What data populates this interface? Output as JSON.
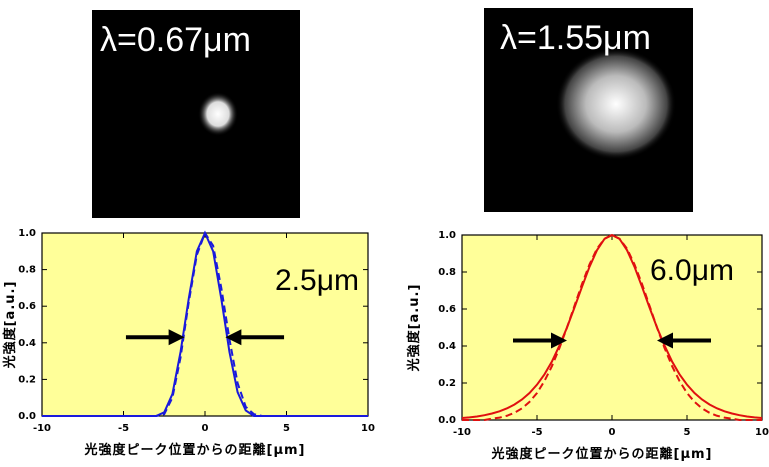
{
  "chart_data": [
    {
      "type": "line",
      "image_label": "λ=0.67μm",
      "annotation": "2.5μm",
      "xlabel": "光強度ピーク位置からの距離[μm]",
      "ylabel": "光強度[a.u.]",
      "xlim": [
        -10,
        10
      ],
      "xticks": [
        -10,
        -5,
        0,
        5,
        10
      ],
      "ylim": [
        0,
        1
      ],
      "yticks": [
        {
          "value": 0,
          "label": "0.0"
        },
        0.2,
        0.4,
        0.6,
        0.8,
        {
          "value": 1,
          "label": "1.0"
        }
      ],
      "x": [
        -10,
        -9.5,
        -9,
        -8.5,
        -8,
        -7.5,
        -7,
        -6.5,
        -6,
        -5.5,
        -5,
        -4.5,
        -4,
        -3.5,
        -3,
        -2.5,
        -2,
        -1.5,
        -1,
        -0.5,
        0,
        0.5,
        1,
        1.5,
        2,
        2.5,
        3,
        3.5,
        4,
        4.5,
        5,
        5.5,
        6,
        6.5,
        7,
        7.5,
        8,
        8.5,
        9,
        9.5,
        10
      ],
      "series": [
        {
          "color": "#1a1adc",
          "style": "solid",
          "values": [
            0,
            0,
            0,
            0,
            0,
            0,
            0,
            0,
            0,
            0,
            0,
            0,
            0,
            0,
            0,
            0.02,
            0.12,
            0.35,
            0.64,
            0.9,
            1,
            0.9,
            0.64,
            0.35,
            0.13,
            0.03,
            0,
            0,
            0,
            0,
            0,
            0,
            0,
            0,
            0,
            0,
            0,
            0,
            0,
            0,
            0
          ]
        },
        {
          "color": "#1a1adc",
          "style": "dashed",
          "values": [
            0,
            0,
            0,
            0,
            0,
            0,
            0,
            0,
            0,
            0,
            0,
            0,
            0,
            0,
            0,
            0.01,
            0.1,
            0.32,
            0.62,
            0.88,
            1,
            0.93,
            0.7,
            0.42,
            0.18,
            0.05,
            0.01,
            0,
            0,
            0,
            0,
            0,
            0,
            0,
            0,
            0,
            0,
            0,
            0,
            0,
            0
          ]
        }
      ]
    },
    {
      "type": "line",
      "image_label": "λ=1.55μm",
      "annotation": "6.0μm",
      "xlabel": "光強度ピーク位置からの距離[μm]",
      "ylabel": "光強度[a.u.]",
      "xlim": [
        -10,
        10
      ],
      "xticks": [
        -10,
        -5,
        0,
        5,
        10
      ],
      "ylim": [
        0,
        1
      ],
      "yticks": [
        {
          "value": 0,
          "label": "0.0"
        },
        0.2,
        0.4,
        0.6,
        0.8,
        {
          "value": 1,
          "label": "1.0"
        }
      ],
      "x": [
        -10,
        -9.5,
        -9,
        -8.5,
        -8,
        -7.5,
        -7,
        -6.5,
        -6,
        -5.5,
        -5,
        -4.5,
        -4,
        -3.5,
        -3,
        -2.5,
        -2,
        -1.5,
        -1,
        -0.5,
        0,
        0.5,
        1,
        1.5,
        2,
        2.5,
        3,
        3.5,
        4,
        4.5,
        5,
        5.5,
        6,
        6.5,
        7,
        7.5,
        8,
        8.5,
        9,
        9.5,
        10
      ],
      "series": [
        {
          "color": "#e01010",
          "style": "solid",
          "values": [
            0.011,
            0.014,
            0.019,
            0.026,
            0.035,
            0.047,
            0.063,
            0.084,
            0.111,
            0.146,
            0.191,
            0.247,
            0.317,
            0.403,
            0.5,
            0.608,
            0.72,
            0.828,
            0.918,
            0.979,
            1,
            0.979,
            0.918,
            0.828,
            0.72,
            0.608,
            0.5,
            0.403,
            0.317,
            0.247,
            0.191,
            0.146,
            0.111,
            0.084,
            0.063,
            0.047,
            0.035,
            0.026,
            0.019,
            0.014,
            0.011
          ]
        },
        {
          "color": "#e01010",
          "style": "dashed",
          "values": [
            0,
            0,
            0,
            0,
            0.007,
            0.013,
            0.023,
            0.039,
            0.063,
            0.098,
            0.146,
            0.211,
            0.292,
            0.39,
            0.5,
            0.618,
            0.735,
            0.841,
            0.926,
            0.98,
            1,
            0.98,
            0.926,
            0.841,
            0.735,
            0.618,
            0.5,
            0.39,
            0.292,
            0.211,
            0.146,
            0.098,
            0.063,
            0.039,
            0.023,
            0.013,
            0.007,
            0,
            0,
            0,
            0
          ]
        }
      ]
    }
  ]
}
